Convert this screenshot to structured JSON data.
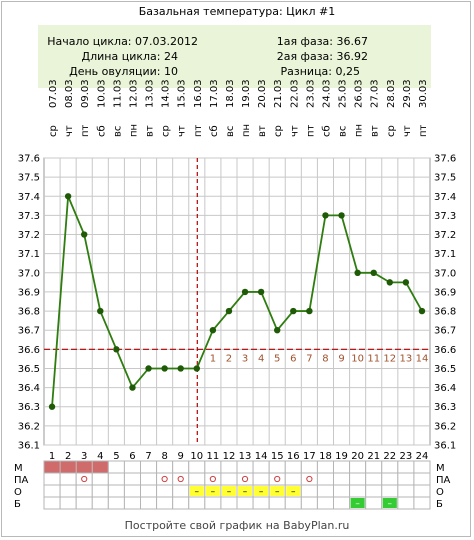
{
  "title": "Базальная температура: Цикл #1",
  "info": {
    "start_label": "Начало цикла: 07.03.2012",
    "length_label": "Длина цикла: 24",
    "ovulation_label": "День овуляции: 10",
    "phase1_label": "1ая фаза: 36.67",
    "phase2_label": "2ая фаза: 36.92",
    "diff_label": "Разница: 0,25"
  },
  "footer": "Постройте свой график на BabyPlan.ru",
  "colors": {
    "line": "#2e7d0f",
    "point": "#1f5a07",
    "grid": "#c8c8c8",
    "coverline": "#b00000",
    "ovulation_line": "#b00000",
    "phase2_numbers": "#a0522d",
    "menses": "#d06b6b",
    "discharge": "#ffff33",
    "test_positive": "#33cc33",
    "circle_marker": "#d04040"
  },
  "chart_data": {
    "type": "line",
    "title": "Базальная температура: Цикл #1",
    "x": [
      1,
      2,
      3,
      4,
      5,
      6,
      7,
      8,
      9,
      10,
      11,
      12,
      13,
      14,
      15,
      16,
      17,
      18,
      19,
      20,
      21,
      22,
      23,
      24
    ],
    "dates": [
      "07.03",
      "08.03",
      "09.03",
      "10.03",
      "11.03",
      "12.03",
      "13.03",
      "14.03",
      "15.03",
      "16.03",
      "17.03",
      "18.03",
      "19.03",
      "20.03",
      "21.03",
      "22.03",
      "23.03",
      "24.03",
      "25.03",
      "26.03",
      "27.03",
      "28.03",
      "29.03",
      "30.03"
    ],
    "weekdays": [
      "ср",
      "чт",
      "пт",
      "сб",
      "вс",
      "пн",
      "вт",
      "ср",
      "чт",
      "пт",
      "сб",
      "вс",
      "пн",
      "вт",
      "ср",
      "чт",
      "пт",
      "сб",
      "вс",
      "пн",
      "вт",
      "ср",
      "чт",
      "пт"
    ],
    "series": [
      {
        "values": [
          36.3,
          37.4,
          37.2,
          36.8,
          36.6,
          36.4,
          36.5,
          36.5,
          36.5,
          36.5,
          36.7,
          36.8,
          36.9,
          36.9,
          36.7,
          36.8,
          36.8,
          37.3,
          37.3,
          37.0,
          37.0,
          36.95,
          36.95,
          36.8
        ]
      }
    ],
    "ylim": [
      36.1,
      37.6
    ],
    "y_ticks": [
      "36.1",
      "36.2",
      "36.3",
      "36.4",
      "36.5",
      "36.6",
      "36.7",
      "36.8",
      "36.9",
      "37.0",
      "37.1",
      "37.2",
      "37.3",
      "37.4",
      "37.5",
      "37.6"
    ],
    "coverline": 36.6,
    "ovulation_day": 10,
    "phase2_day_numbers": [
      "1",
      "2",
      "3",
      "4",
      "5",
      "6",
      "7",
      "8",
      "9",
      "10",
      "11",
      "12",
      "13",
      "14"
    ],
    "grid": true,
    "rows": {
      "labels": [
        "М",
        "ПА",
        "О",
        "Б"
      ],
      "menses_days": [
        1,
        2,
        3,
        4
      ],
      "pa_circle_days": [
        3,
        8,
        9,
        11,
        13,
        15,
        17
      ],
      "discharge_days": [
        10,
        11,
        12,
        13,
        14,
        15,
        16
      ],
      "discharge_symbol": "–",
      "test_days": [
        20,
        22
      ],
      "test_symbol": "–"
    }
  }
}
